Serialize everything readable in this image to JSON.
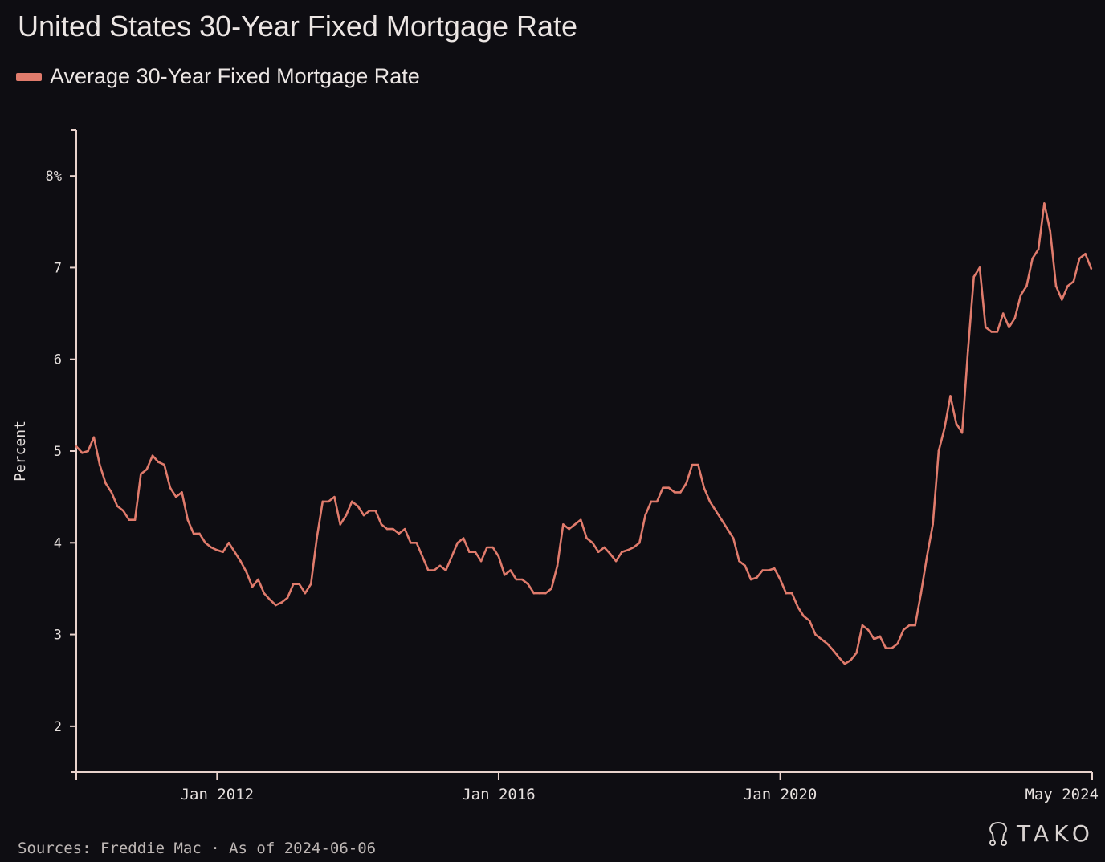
{
  "chart_data": {
    "type": "line",
    "title": "United States 30-Year Fixed Mortgage Rate",
    "ylabel": "Percent",
    "xlabel": "",
    "ylim": [
      1.5,
      8.5
    ],
    "xlim": [
      "2010-01",
      "2024-06-06"
    ],
    "y_ticks": [
      2,
      3,
      4,
      5,
      6,
      7,
      8
    ],
    "y_tick_labels": [
      "2",
      "3",
      "4",
      "5",
      "6",
      "7",
      "8%"
    ],
    "x_ticks": [
      "2012-01",
      "2016-01",
      "2020-01",
      "2024-05"
    ],
    "x_tick_labels": [
      "Jan 2012",
      "Jan 2016",
      "Jan 2020",
      "May 2024"
    ],
    "grid": false,
    "legend_position": "top-left",
    "series": [
      {
        "name": "Average 30-Year Fixed Mortgage Rate",
        "color": "#e07b6c",
        "x": [
          "2010-01",
          "2010-02",
          "2010-03",
          "2010-04",
          "2010-05",
          "2010-06",
          "2010-07",
          "2010-08",
          "2010-09",
          "2010-10",
          "2010-11",
          "2010-12",
          "2011-01",
          "2011-02",
          "2011-03",
          "2011-04",
          "2011-05",
          "2011-06",
          "2011-07",
          "2011-08",
          "2011-09",
          "2011-10",
          "2011-11",
          "2011-12",
          "2012-01",
          "2012-02",
          "2012-03",
          "2012-04",
          "2012-05",
          "2012-06",
          "2012-07",
          "2012-08",
          "2012-09",
          "2012-10",
          "2012-11",
          "2012-12",
          "2013-01",
          "2013-02",
          "2013-03",
          "2013-04",
          "2013-05",
          "2013-06",
          "2013-07",
          "2013-08",
          "2013-09",
          "2013-10",
          "2013-11",
          "2013-12",
          "2014-01",
          "2014-02",
          "2014-03",
          "2014-04",
          "2014-05",
          "2014-06",
          "2014-07",
          "2014-08",
          "2014-09",
          "2014-10",
          "2014-11",
          "2014-12",
          "2015-01",
          "2015-02",
          "2015-03",
          "2015-04",
          "2015-05",
          "2015-06",
          "2015-07",
          "2015-08",
          "2015-09",
          "2015-10",
          "2015-11",
          "2015-12",
          "2016-01",
          "2016-02",
          "2016-03",
          "2016-04",
          "2016-05",
          "2016-06",
          "2016-07",
          "2016-08",
          "2016-09",
          "2016-10",
          "2016-11",
          "2016-12",
          "2017-01",
          "2017-02",
          "2017-03",
          "2017-04",
          "2017-05",
          "2017-06",
          "2017-07",
          "2017-08",
          "2017-09",
          "2017-10",
          "2017-11",
          "2017-12",
          "2018-01",
          "2018-02",
          "2018-03",
          "2018-04",
          "2018-05",
          "2018-06",
          "2018-07",
          "2018-08",
          "2018-09",
          "2018-10",
          "2018-11",
          "2018-12",
          "2019-01",
          "2019-02",
          "2019-03",
          "2019-04",
          "2019-05",
          "2019-06",
          "2019-07",
          "2019-08",
          "2019-09",
          "2019-10",
          "2019-11",
          "2019-12",
          "2020-01",
          "2020-02",
          "2020-03",
          "2020-04",
          "2020-05",
          "2020-06",
          "2020-07",
          "2020-08",
          "2020-09",
          "2020-10",
          "2020-11",
          "2020-12",
          "2021-01",
          "2021-02",
          "2021-03",
          "2021-04",
          "2021-05",
          "2021-06",
          "2021-07",
          "2021-08",
          "2021-09",
          "2021-10",
          "2021-11",
          "2021-12",
          "2022-01",
          "2022-02",
          "2022-03",
          "2022-04",
          "2022-05",
          "2022-06",
          "2022-07",
          "2022-08",
          "2022-09",
          "2022-10",
          "2022-11",
          "2022-12",
          "2023-01",
          "2023-02",
          "2023-03",
          "2023-04",
          "2023-05",
          "2023-06",
          "2023-07",
          "2023-08",
          "2023-09",
          "2023-10",
          "2023-11",
          "2023-12",
          "2024-01",
          "2024-02",
          "2024-03",
          "2024-04",
          "2024-05",
          "2024-06"
        ],
        "y": [
          5.05,
          4.98,
          5.0,
          5.15,
          4.85,
          4.65,
          4.55,
          4.4,
          4.35,
          4.25,
          4.25,
          4.75,
          4.8,
          4.95,
          4.88,
          4.85,
          4.6,
          4.5,
          4.55,
          4.25,
          4.1,
          4.1,
          4.0,
          3.95,
          3.92,
          3.9,
          4.0,
          3.9,
          3.8,
          3.68,
          3.52,
          3.6,
          3.45,
          3.38,
          3.32,
          3.35,
          3.4,
          3.55,
          3.55,
          3.45,
          3.55,
          4.05,
          4.45,
          4.45,
          4.5,
          4.2,
          4.3,
          4.45,
          4.4,
          4.3,
          4.35,
          4.35,
          4.2,
          4.15,
          4.15,
          4.1,
          4.15,
          4.0,
          4.0,
          3.85,
          3.7,
          3.7,
          3.75,
          3.7,
          3.85,
          4.0,
          4.05,
          3.9,
          3.9,
          3.8,
          3.95,
          3.95,
          3.85,
          3.65,
          3.7,
          3.6,
          3.6,
          3.55,
          3.45,
          3.45,
          3.45,
          3.5,
          3.75,
          4.2,
          4.15,
          4.2,
          4.25,
          4.05,
          4.0,
          3.9,
          3.95,
          3.88,
          3.8,
          3.9,
          3.92,
          3.95,
          4.0,
          4.3,
          4.45,
          4.45,
          4.6,
          4.6,
          4.55,
          4.55,
          4.65,
          4.85,
          4.85,
          4.6,
          4.45,
          4.35,
          4.25,
          4.15,
          4.05,
          3.8,
          3.75,
          3.6,
          3.62,
          3.7,
          3.7,
          3.72,
          3.6,
          3.45,
          3.45,
          3.3,
          3.2,
          3.15,
          3.0,
          2.95,
          2.9,
          2.83,
          2.75,
          2.68,
          2.72,
          2.8,
          3.1,
          3.05,
          2.95,
          2.98,
          2.85,
          2.85,
          2.9,
          3.05,
          3.1,
          3.1,
          3.45,
          3.85,
          4.2,
          5.0,
          5.25,
          5.6,
          5.3,
          5.2,
          6.1,
          6.9,
          7.0,
          6.35,
          6.3,
          6.3,
          6.5,
          6.35,
          6.45,
          6.7,
          6.8,
          7.1,
          7.2,
          7.7,
          7.4,
          6.8,
          6.65,
          6.8,
          6.85,
          7.1,
          7.15,
          6.99
        ]
      }
    ]
  },
  "legend": {
    "label": "Average 30-Year Fixed Mortgage Rate"
  },
  "footer": {
    "source": "Sources: Freddie Mac · As of 2024-06-06",
    "logo_text": "TAKO"
  },
  "colors": {
    "background": "#0e0d12",
    "line": "#e07b6c",
    "axis": "#e8d2cc"
  }
}
